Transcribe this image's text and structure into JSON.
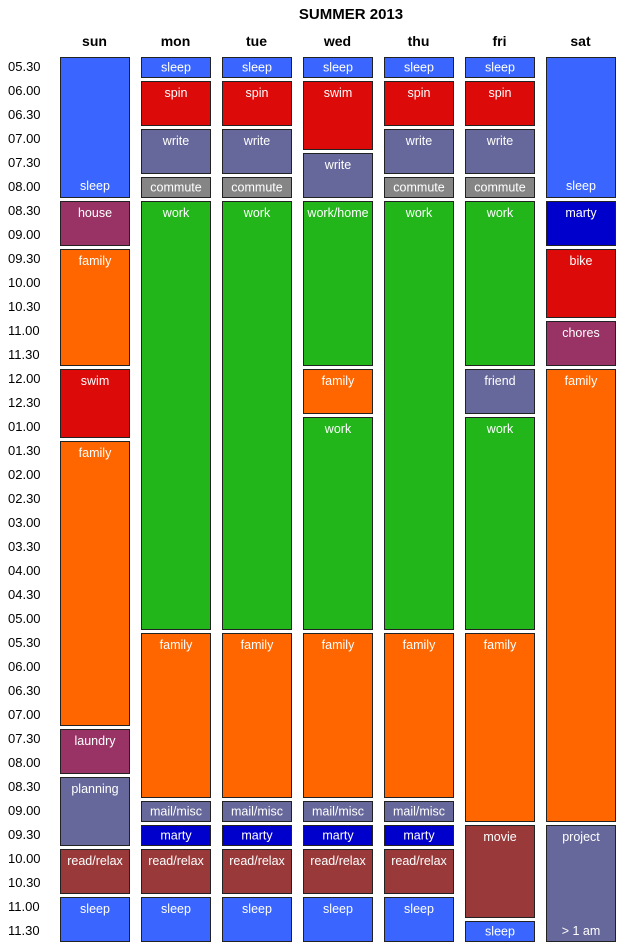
{
  "title": "SUMMER 2013",
  "days": [
    "sun",
    "mon",
    "tue",
    "wed",
    "thu",
    "fri",
    "sat"
  ],
  "times": [
    "05.30",
    "06.00",
    "06.30",
    "07.00",
    "07.30",
    "08.00",
    "08.30",
    "09.00",
    "09.30",
    "10.00",
    "10.30",
    "11.00",
    "11.30",
    "12.00",
    "12.30",
    "01.00",
    "01.30",
    "02.00",
    "02.30",
    "03.00",
    "03.30",
    "04.00",
    "04.30",
    "05.00",
    "05.30",
    "06.00",
    "06.30",
    "07.00",
    "07.30",
    "08.00",
    "08.30",
    "09.00",
    "09.30",
    "10.00",
    "10.30",
    "11.00",
    "11.30"
  ],
  "colors": {
    "sleep": "#3a66ff",
    "spin": "#dd0a0a",
    "swim": "#dd0a0a",
    "bike": "#dd0a0a",
    "write": "#66679a",
    "friend": "#66679a",
    "planning": "#66679a",
    "project": "#66679a",
    "mail": "#66679a",
    "commute": "#858585",
    "work": "#22b61a",
    "family": "#ff6600",
    "house": "#993366",
    "chores": "#993366",
    "laundry": "#993366",
    "marty": "#0000cc",
    "read": "#993939",
    "movie": "#993939"
  },
  "events": [
    {
      "day": 0,
      "start": 0,
      "end": 6,
      "label": "sleep",
      "color": "sleep",
      "align": "bottom"
    },
    {
      "day": 0,
      "start": 6,
      "end": 8,
      "label": "house",
      "color": "house",
      "align": "top"
    },
    {
      "day": 0,
      "start": 8,
      "end": 13,
      "label": "family",
      "color": "family",
      "align": "top"
    },
    {
      "day": 0,
      "start": 13,
      "end": 16,
      "label": "swim",
      "color": "swim",
      "align": "top"
    },
    {
      "day": 0,
      "start": 16,
      "end": 28,
      "label": "family",
      "color": "family",
      "align": "top"
    },
    {
      "day": 0,
      "start": 28,
      "end": 30,
      "label": "laundry",
      "color": "laundry",
      "align": "top"
    },
    {
      "day": 0,
      "start": 30,
      "end": 33,
      "label": "planning",
      "color": "planning",
      "align": "top"
    },
    {
      "day": 0,
      "start": 33,
      "end": 35,
      "label": "read/relax",
      "color": "read",
      "align": "top"
    },
    {
      "day": 0,
      "start": 35,
      "end": 37,
      "label": "sleep",
      "color": "sleep",
      "align": "top"
    },
    {
      "day": 1,
      "start": 0,
      "end": 1,
      "label": "sleep",
      "color": "sleep",
      "align": "center"
    },
    {
      "day": 1,
      "start": 1,
      "end": 3,
      "label": "spin",
      "color": "spin",
      "align": "top"
    },
    {
      "day": 1,
      "start": 3,
      "end": 5,
      "label": "write",
      "color": "write",
      "align": "top"
    },
    {
      "day": 1,
      "start": 5,
      "end": 6,
      "label": "commute",
      "color": "commute",
      "align": "center"
    },
    {
      "day": 1,
      "start": 6,
      "end": 24,
      "label": "work",
      "color": "work",
      "align": "top"
    },
    {
      "day": 1,
      "start": 24,
      "end": 31,
      "label": "family",
      "color": "family",
      "align": "top"
    },
    {
      "day": 1,
      "start": 31,
      "end": 32,
      "label": "mail/misc",
      "color": "mail",
      "align": "center"
    },
    {
      "day": 1,
      "start": 32,
      "end": 33,
      "label": "marty",
      "color": "marty",
      "align": "center"
    },
    {
      "day": 1,
      "start": 33,
      "end": 35,
      "label": "read/relax",
      "color": "read",
      "align": "top"
    },
    {
      "day": 1,
      "start": 35,
      "end": 37,
      "label": "sleep",
      "color": "sleep",
      "align": "top"
    },
    {
      "day": 2,
      "start": 0,
      "end": 1,
      "label": "sleep",
      "color": "sleep",
      "align": "center"
    },
    {
      "day": 2,
      "start": 1,
      "end": 3,
      "label": "spin",
      "color": "spin",
      "align": "top"
    },
    {
      "day": 2,
      "start": 3,
      "end": 5,
      "label": "write",
      "color": "write",
      "align": "top"
    },
    {
      "day": 2,
      "start": 5,
      "end": 6,
      "label": "commute",
      "color": "commute",
      "align": "center"
    },
    {
      "day": 2,
      "start": 6,
      "end": 24,
      "label": "work",
      "color": "work",
      "align": "top"
    },
    {
      "day": 2,
      "start": 24,
      "end": 31,
      "label": "family",
      "color": "family",
      "align": "top"
    },
    {
      "day": 2,
      "start": 31,
      "end": 32,
      "label": "mail/misc",
      "color": "mail",
      "align": "center"
    },
    {
      "day": 2,
      "start": 32,
      "end": 33,
      "label": "marty",
      "color": "marty",
      "align": "center"
    },
    {
      "day": 2,
      "start": 33,
      "end": 35,
      "label": "read/relax",
      "color": "read",
      "align": "top"
    },
    {
      "day": 2,
      "start": 35,
      "end": 37,
      "label": "sleep",
      "color": "sleep",
      "align": "top"
    },
    {
      "day": 3,
      "start": 0,
      "end": 1,
      "label": "sleep",
      "color": "sleep",
      "align": "center"
    },
    {
      "day": 3,
      "start": 1,
      "end": 4,
      "label": "swim",
      "color": "swim",
      "align": "top"
    },
    {
      "day": 3,
      "start": 4,
      "end": 6,
      "label": "write",
      "color": "write",
      "align": "top"
    },
    {
      "day": 3,
      "start": 6,
      "end": 13,
      "label": "work/home",
      "color": "work",
      "align": "top"
    },
    {
      "day": 3,
      "start": 13,
      "end": 15,
      "label": "family",
      "color": "family",
      "align": "top"
    },
    {
      "day": 3,
      "start": 15,
      "end": 24,
      "label": "work",
      "color": "work",
      "align": "top"
    },
    {
      "day": 3,
      "start": 24,
      "end": 31,
      "label": "family",
      "color": "family",
      "align": "top"
    },
    {
      "day": 3,
      "start": 31,
      "end": 32,
      "label": "mail/misc",
      "color": "mail",
      "align": "center"
    },
    {
      "day": 3,
      "start": 32,
      "end": 33,
      "label": "marty",
      "color": "marty",
      "align": "center"
    },
    {
      "day": 3,
      "start": 33,
      "end": 35,
      "label": "read/relax",
      "color": "read",
      "align": "top"
    },
    {
      "day": 3,
      "start": 35,
      "end": 37,
      "label": "sleep",
      "color": "sleep",
      "align": "top"
    },
    {
      "day": 4,
      "start": 0,
      "end": 1,
      "label": "sleep",
      "color": "sleep",
      "align": "center"
    },
    {
      "day": 4,
      "start": 1,
      "end": 3,
      "label": "spin",
      "color": "spin",
      "align": "top"
    },
    {
      "day": 4,
      "start": 3,
      "end": 5,
      "label": "write",
      "color": "write",
      "align": "top"
    },
    {
      "day": 4,
      "start": 5,
      "end": 6,
      "label": "commute",
      "color": "commute",
      "align": "center"
    },
    {
      "day": 4,
      "start": 6,
      "end": 24,
      "label": "work",
      "color": "work",
      "align": "top"
    },
    {
      "day": 4,
      "start": 24,
      "end": 31,
      "label": "family",
      "color": "family",
      "align": "top"
    },
    {
      "day": 4,
      "start": 31,
      "end": 32,
      "label": "mail/misc",
      "color": "mail",
      "align": "center"
    },
    {
      "day": 4,
      "start": 32,
      "end": 33,
      "label": "marty",
      "color": "marty",
      "align": "center"
    },
    {
      "day": 4,
      "start": 33,
      "end": 35,
      "label": "read/relax",
      "color": "read",
      "align": "top"
    },
    {
      "day": 4,
      "start": 35,
      "end": 37,
      "label": "sleep",
      "color": "sleep",
      "align": "top"
    },
    {
      "day": 5,
      "start": 0,
      "end": 1,
      "label": "sleep",
      "color": "sleep",
      "align": "center"
    },
    {
      "day": 5,
      "start": 1,
      "end": 3,
      "label": "spin",
      "color": "spin",
      "align": "top"
    },
    {
      "day": 5,
      "start": 3,
      "end": 5,
      "label": "write",
      "color": "write",
      "align": "top"
    },
    {
      "day": 5,
      "start": 5,
      "end": 6,
      "label": "commute",
      "color": "commute",
      "align": "center"
    },
    {
      "day": 5,
      "start": 6,
      "end": 13,
      "label": "work",
      "color": "work",
      "align": "top"
    },
    {
      "day": 5,
      "start": 13,
      "end": 15,
      "label": "friend",
      "color": "friend",
      "align": "top"
    },
    {
      "day": 5,
      "start": 15,
      "end": 24,
      "label": "work",
      "color": "work",
      "align": "top"
    },
    {
      "day": 5,
      "start": 24,
      "end": 32,
      "label": "family",
      "color": "family",
      "align": "top"
    },
    {
      "day": 5,
      "start": 32,
      "end": 36,
      "label": "movie",
      "color": "movie",
      "align": "top"
    },
    {
      "day": 5,
      "start": 36,
      "end": 37,
      "label": "sleep",
      "color": "sleep",
      "align": "center"
    },
    {
      "day": 6,
      "start": 0,
      "end": 6,
      "label": "sleep",
      "color": "sleep",
      "align": "bottom"
    },
    {
      "day": 6,
      "start": 6,
      "end": 8,
      "label": "marty",
      "color": "marty",
      "align": "top"
    },
    {
      "day": 6,
      "start": 8,
      "end": 11,
      "label": "bike",
      "color": "bike",
      "align": "top"
    },
    {
      "day": 6,
      "start": 11,
      "end": 13,
      "label": "chores",
      "color": "chores",
      "align": "top"
    },
    {
      "day": 6,
      "start": 13,
      "end": 32,
      "label": "family",
      "color": "family",
      "align": "top"
    },
    {
      "day": 6,
      "start": 32,
      "end": 37,
      "label": "project",
      "color": "project",
      "align": "top",
      "sub": "> 1 am"
    }
  ]
}
